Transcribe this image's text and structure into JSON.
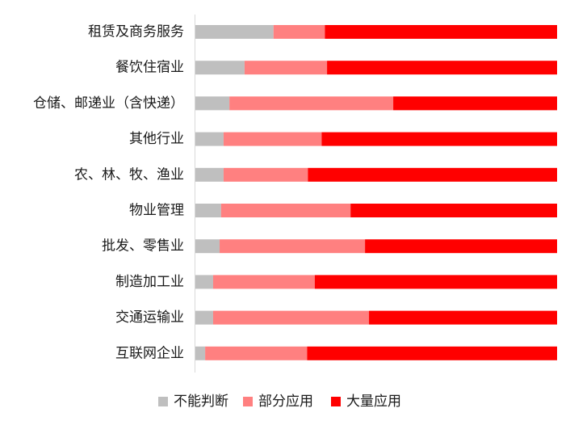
{
  "chart_data": {
    "type": "bar",
    "orientation": "horizontal",
    "stacked": "percent",
    "categories": [
      "租赁及商务服务",
      "餐饮住宿业",
      "仓储、邮递业（含快递）",
      "其他行业",
      "农、林、牧、渔业",
      "物业管理",
      "批发、零售业",
      "制造加工业",
      "交通运输业",
      "互联网企业"
    ],
    "series": [
      {
        "name": "不能判断",
        "color": "#bfbfbf",
        "values": [
          21.6,
          13.6,
          9.4,
          7.8,
          7.8,
          7.1,
          6.7,
          4.9,
          4.9,
          2.7
        ]
      },
      {
        "name": "部分应用",
        "color": "#ff8080",
        "values": [
          14.2,
          22.8,
          45.3,
          27.1,
          23.3,
          35.8,
          40.2,
          28.1,
          43.1,
          28.2
        ]
      },
      {
        "name": "大量应用",
        "color": "#ff0000",
        "values": [
          64.2,
          63.6,
          45.3,
          65.1,
          68.9,
          57.1,
          53.1,
          67.0,
          52.0,
          69.1
        ]
      }
    ],
    "xlim": [
      0,
      100
    ],
    "grid": false,
    "legend": "bottom-center"
  }
}
